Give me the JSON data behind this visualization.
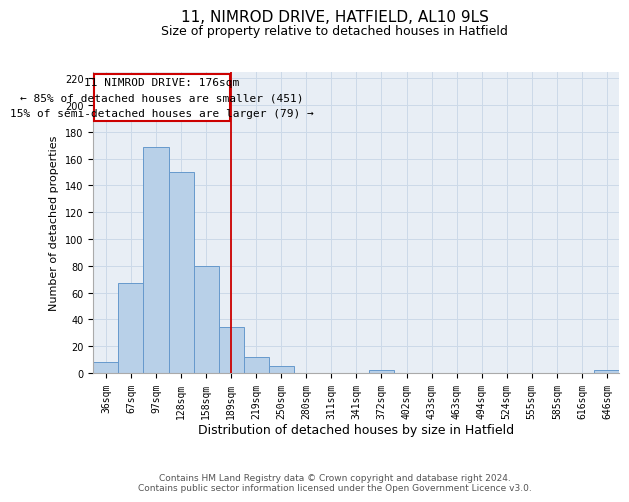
{
  "title": "11, NIMROD DRIVE, HATFIELD, AL10 9LS",
  "subtitle": "Size of property relative to detached houses in Hatfield",
  "xlabel": "Distribution of detached houses by size in Hatfield",
  "ylabel": "Number of detached properties",
  "footer_lines": [
    "Contains HM Land Registry data © Crown copyright and database right 2024.",
    "Contains public sector information licensed under the Open Government Licence v3.0."
  ],
  "bin_labels": [
    "36sqm",
    "67sqm",
    "97sqm",
    "128sqm",
    "158sqm",
    "189sqm",
    "219sqm",
    "250sqm",
    "280sqm",
    "311sqm",
    "341sqm",
    "372sqm",
    "402sqm",
    "433sqm",
    "463sqm",
    "494sqm",
    "524sqm",
    "555sqm",
    "585sqm",
    "616sqm",
    "646sqm"
  ],
  "bar_values": [
    8,
    67,
    169,
    150,
    80,
    34,
    12,
    5,
    0,
    0,
    0,
    2,
    0,
    0,
    0,
    0,
    0,
    0,
    0,
    0,
    2
  ],
  "bar_color": "#b8d0e8",
  "bar_edge_color": "#6699cc",
  "vline_x": 5.48,
  "vline_color": "#cc0000",
  "annotation_line1": "11 NIMROD DRIVE: 176sqm",
  "annotation_line2": "← 85% of detached houses are smaller (451)",
  "annotation_line3": "15% of semi-detached houses are larger (79) →",
  "ylim": [
    0,
    225
  ],
  "yticks": [
    0,
    20,
    40,
    60,
    80,
    100,
    120,
    140,
    160,
    180,
    200,
    220
  ],
  "grid_color": "#ccd9e8",
  "background_color": "#e8eef5",
  "title_fontsize": 11,
  "subtitle_fontsize": 9,
  "xlabel_fontsize": 9,
  "ylabel_fontsize": 8,
  "tick_fontsize": 7,
  "annotation_fontsize": 8,
  "footer_fontsize": 6.5
}
